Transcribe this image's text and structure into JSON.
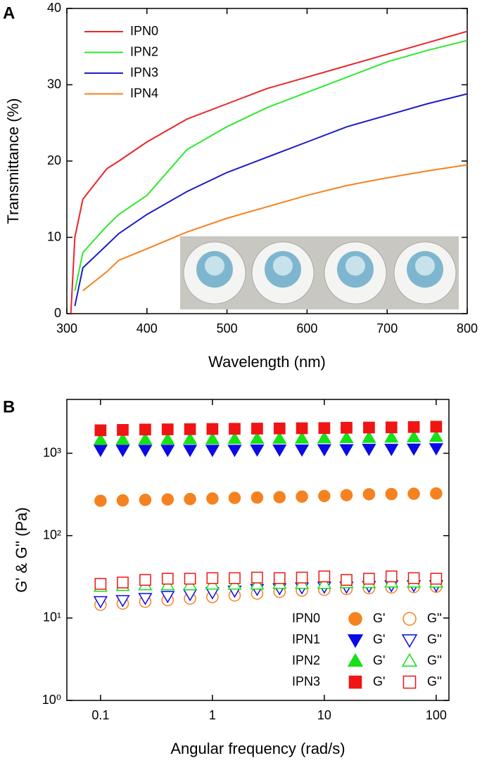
{
  "chart_data": [
    {
      "type": "line",
      "panel": "A",
      "x_label": "Wavelength (nm)",
      "y_label": "Transmittance (%)",
      "x": [
        305,
        310,
        320,
        350,
        365,
        400,
        450,
        500,
        550,
        600,
        650,
        700,
        750,
        800
      ],
      "series": [
        {
          "name": "IPN0",
          "color": "#e8262a",
          "values": [
            0,
            10,
            15,
            19,
            20,
            22.5,
            25.5,
            27.5,
            29.5,
            31,
            32.5,
            34,
            35.5,
            37
          ]
        },
        {
          "name": "IPN2",
          "color": "#2ee82e",
          "values": [
            null,
            3,
            8,
            11.5,
            13,
            15.5,
            21.5,
            24.5,
            27,
            29,
            31,
            33,
            34.5,
            35.8
          ]
        },
        {
          "name": "IPN3",
          "color": "#1c1cc8",
          "values": [
            null,
            1,
            6,
            9,
            10.5,
            13,
            16,
            18.5,
            20.5,
            22.5,
            24.5,
            26,
            27.5,
            28.8
          ]
        },
        {
          "name": "IPN4",
          "color": "#f58220",
          "values": [
            null,
            null,
            3,
            5.5,
            7,
            8.5,
            10.7,
            12.5,
            14,
            15.5,
            16.8,
            17.8,
            18.7,
            19.5
          ]
        }
      ],
      "xlim": [
        300,
        800
      ],
      "xticks": [
        300,
        400,
        500,
        600,
        700,
        800
      ],
      "ylim": [
        0,
        40
      ],
      "yticks": [
        0,
        10,
        20,
        30,
        40
      ],
      "grid": false,
      "legend": "upper left"
    },
    {
      "type": "scatter",
      "panel": "B",
      "x_label": "Angular frequency (rad/s)",
      "y_label": "G' & G'' (Pa)",
      "xscale": "log",
      "yscale": "log",
      "x": [
        0.1,
        0.158,
        0.251,
        0.398,
        0.631,
        1,
        1.58,
        2.51,
        3.98,
        6.31,
        10,
        15.8,
        25.1,
        39.8,
        63.1,
        100
      ],
      "legend_rows": [
        "IPN0",
        "IPN1",
        "IPN2",
        "IPN3"
      ],
      "legend_columns": [
        "G'",
        "G''"
      ],
      "series": [
        {
          "row": 0,
          "col": 0,
          "color": "#f58220",
          "marker": "circle",
          "filled": true,
          "values": [
            265,
            268,
            272,
            275,
            278,
            282,
            287,
            290,
            293,
            298,
            303,
            310,
            318,
            320,
            322,
            325
          ]
        },
        {
          "row": 0,
          "col": 1,
          "color": "#f58220",
          "marker": "circle",
          "filled": false,
          "values": [
            14.5,
            15,
            15.8,
            16.5,
            17.2,
            18,
            18.8,
            19.8,
            20.8,
            21.5,
            22,
            22.5,
            23,
            23.5,
            23.8,
            24
          ]
        },
        {
          "row": 1,
          "col": 0,
          "color": "#0a0ae6",
          "marker": "triangle-down",
          "filled": true,
          "values": [
            1100,
            1100,
            1100,
            1100,
            1100,
            1100,
            1100,
            1110,
            1110,
            1110,
            1120,
            1120,
            1130,
            1130,
            1140,
            1150
          ]
        },
        {
          "row": 1,
          "col": 1,
          "color": "#0a0ae6",
          "marker": "triangle-down",
          "filled": false,
          "values": [
            16,
            16.5,
            17.5,
            18.5,
            19.5,
            20.5,
            21.5,
            22.5,
            23,
            23.5,
            24,
            24,
            24.5,
            25,
            25,
            25
          ]
        },
        {
          "row": 2,
          "col": 0,
          "color": "#16e016",
          "marker": "triangle-up",
          "filled": true,
          "values": [
            1450,
            1460,
            1470,
            1470,
            1480,
            1480,
            1490,
            1500,
            1500,
            1510,
            1520,
            1530,
            1540,
            1550,
            1560,
            1580
          ]
        },
        {
          "row": 2,
          "col": 1,
          "color": "#16e016",
          "marker": "triangle-up",
          "filled": false,
          "values": [
            24,
            24.5,
            25,
            25,
            25,
            25.5,
            25.5,
            25.5,
            26,
            26,
            26,
            26.5,
            26.5,
            27,
            27,
            27
          ]
        },
        {
          "row": 3,
          "col": 0,
          "color": "#f01414",
          "marker": "square",
          "filled": true,
          "values": [
            1900,
            1920,
            1940,
            1950,
            1960,
            1970,
            1980,
            1990,
            2000,
            2010,
            2020,
            2040,
            2050,
            2060,
            2080,
            2100
          ]
        },
        {
          "row": 3,
          "col": 1,
          "color": "#f01414",
          "marker": "square",
          "filled": false,
          "values": [
            26,
            27,
            29,
            30,
            30,
            30.5,
            30.5,
            31,
            30.5,
            31,
            32,
            29,
            30,
            32,
            30.5,
            30
          ]
        }
      ],
      "xlim": [
        0.05,
        130
      ],
      "xticks": [
        0.1,
        1,
        10,
        100
      ],
      "ylim": [
        1,
        4500
      ],
      "yticks": [
        {
          "value": 1,
          "label": "10⁰"
        },
        {
          "value": 10,
          "label": "10¹"
        },
        {
          "value": 100,
          "label": "10²"
        },
        {
          "value": 1000,
          "label": "10³"
        }
      ],
      "grid": false
    }
  ]
}
